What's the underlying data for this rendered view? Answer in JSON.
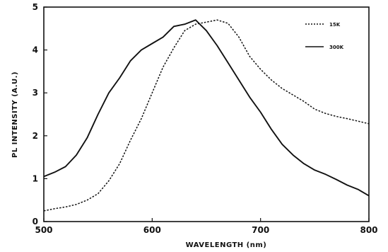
{
  "chart_data": {
    "type": "line",
    "xlabel": "WAVELENGTH (nm)",
    "ylabel": "PL INTENSITY (A.U.)",
    "xlim": [
      500,
      800
    ],
    "ylim": [
      0,
      5
    ],
    "xticks": [
      "500",
      "600",
      "700",
      "800"
    ],
    "yticks": [
      "0",
      "1",
      "2",
      "3",
      "4",
      "5"
    ],
    "grid": false,
    "legend_position": "top-right",
    "series": [
      {
        "name": "15K",
        "style": "dashed",
        "color": "#111111",
        "x": [
          500,
          510,
          520,
          530,
          540,
          550,
          560,
          570,
          580,
          590,
          600,
          610,
          620,
          630,
          640,
          650,
          660,
          670,
          680,
          690,
          700,
          710,
          720,
          730,
          740,
          750,
          760,
          770,
          780,
          790,
          800
        ],
        "y": [
          0.25,
          0.3,
          0.34,
          0.4,
          0.5,
          0.65,
          0.95,
          1.35,
          1.9,
          2.4,
          3.0,
          3.6,
          4.05,
          4.45,
          4.6,
          4.65,
          4.7,
          4.62,
          4.3,
          3.85,
          3.55,
          3.3,
          3.1,
          2.95,
          2.8,
          2.62,
          2.52,
          2.45,
          2.4,
          2.34,
          2.28
        ]
      },
      {
        "name": "300K",
        "style": "solid",
        "color": "#111111",
        "x": [
          500,
          510,
          520,
          530,
          540,
          550,
          560,
          570,
          580,
          590,
          600,
          610,
          620,
          630,
          640,
          650,
          660,
          670,
          680,
          690,
          700,
          710,
          720,
          730,
          740,
          750,
          760,
          770,
          780,
          790,
          800
        ],
        "y": [
          1.05,
          1.15,
          1.28,
          1.55,
          1.95,
          2.5,
          3.0,
          3.35,
          3.75,
          4.0,
          4.15,
          4.3,
          4.55,
          4.6,
          4.7,
          4.45,
          4.1,
          3.7,
          3.3,
          2.9,
          2.55,
          2.15,
          1.8,
          1.55,
          1.35,
          1.2,
          1.1,
          0.98,
          0.85,
          0.75,
          0.6
        ]
      }
    ]
  }
}
